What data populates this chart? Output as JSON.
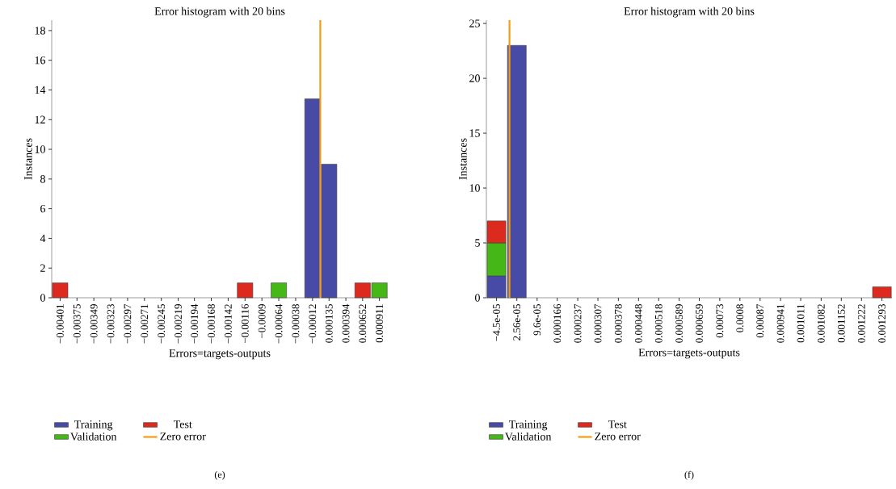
{
  "chart_data": [
    {
      "type": "bar",
      "title": "Error histogram with 20 bins",
      "xlabel": "Errors=targets-outputs",
      "ylabel": "Instances",
      "x": [
        -0.00401,
        -0.00375,
        -0.00349,
        -0.00323,
        -0.00297,
        -0.00271,
        -0.00245,
        -0.00219,
        -0.00194,
        -0.00168,
        -0.00142,
        -0.00116,
        -0.0009,
        -0.00064,
        -0.00038,
        -0.00012,
        0.000135,
        0.000394,
        0.000652,
        0.000911
      ],
      "stacked": true,
      "series": [
        {
          "name": "Training",
          "color": "#474ba5",
          "values": [
            0,
            0,
            0,
            0,
            0,
            0,
            0,
            0,
            0,
            0,
            0,
            0,
            0,
            0,
            0,
            13.4,
            9,
            0,
            0,
            0
          ]
        },
        {
          "name": "Validation",
          "color": "#45b818",
          "values": [
            0,
            0,
            0,
            0,
            0,
            0,
            0,
            0,
            0,
            0,
            0,
            0,
            0,
            1,
            0,
            0,
            0,
            0,
            0,
            1
          ]
        },
        {
          "name": "Test",
          "color": "#dc2a1e",
          "values": [
            1,
            0,
            0,
            0,
            0,
            0,
            0,
            0,
            0,
            0,
            0,
            1,
            0,
            0,
            0,
            0,
            0,
            0,
            1,
            0
          ]
        }
      ],
      "ref_lines": [
        {
          "axis": "x",
          "value": 0,
          "label": "Zero error",
          "color": "#f39c12"
        }
      ],
      "xticks": [
        {
          "value": -0.00401,
          "label": "−0.00401"
        },
        {
          "value": -0.00375,
          "label": "−0.00375"
        },
        {
          "value": -0.00349,
          "label": "−0.00349"
        },
        {
          "value": -0.00323,
          "label": "−0.00323"
        },
        {
          "value": -0.00297,
          "label": "−0.00297"
        },
        {
          "value": -0.00271,
          "label": "−0.00271"
        },
        {
          "value": -0.00245,
          "label": "−0.00245"
        },
        {
          "value": -0.00219,
          "label": "−0.00219"
        },
        {
          "value": -0.00194,
          "label": "−0.00194"
        },
        {
          "value": -0.00168,
          "label": "−0.00168"
        },
        {
          "value": -0.00142,
          "label": "−0.00142"
        },
        {
          "value": -0.00116,
          "label": "−0.00116"
        },
        {
          "value": -0.0009,
          "label": "−0.0009"
        },
        {
          "value": -0.00064,
          "label": "−0.00064"
        },
        {
          "value": -0.00038,
          "label": "−0.00038"
        },
        {
          "value": -0.00012,
          "label": "−0.00012"
        },
        {
          "value": 0.000135,
          "label": "0.000135"
        },
        {
          "value": 0.000394,
          "label": "0.000394"
        },
        {
          "value": 0.000652,
          "label": "0.000652"
        },
        {
          "value": 0.000911,
          "label": "0.000911"
        }
      ],
      "xlim": [
        -0.0041395,
        0.0010405
      ],
      "ylim": [
        0,
        18.7
      ],
      "yticks": [
        0,
        2,
        4,
        6,
        8,
        10,
        12,
        14,
        16,
        18
      ],
      "legend": "bottom",
      "annotations": [
        "(e)"
      ]
    },
    {
      "type": "bar",
      "title": "Error histogram with 20 bins",
      "xlabel": "Errors=targets-outputs",
      "ylabel": "Instances",
      "x": [
        -4.5e-05,
        2.56e-05,
        9.6e-05,
        0.000166,
        0.000237,
        0.000307,
        0.000378,
        0.000448,
        0.000518,
        0.000589,
        0.000659,
        0.00073,
        0.0008,
        0.00087,
        0.000941,
        0.001011,
        0.001082,
        0.001152,
        0.001222,
        0.001293
      ],
      "stacked": true,
      "series": [
        {
          "name": "Training",
          "color": "#474ba5",
          "values": [
            2,
            23,
            0,
            0,
            0,
            0,
            0,
            0,
            0,
            0,
            0,
            0,
            0,
            0,
            0,
            0,
            0,
            0,
            0,
            0
          ]
        },
        {
          "name": "Validation",
          "color": "#45b818",
          "values": [
            3,
            0,
            0,
            0,
            0,
            0,
            0,
            0,
            0,
            0,
            0,
            0,
            0,
            0,
            0,
            0,
            0,
            0,
            0,
            0
          ]
        },
        {
          "name": "Test",
          "color": "#dc2a1e",
          "values": [
            2,
            0,
            0,
            0,
            0,
            0,
            0,
            0,
            0,
            0,
            0,
            0,
            0,
            0,
            0,
            0,
            0,
            0,
            0,
            1
          ]
        }
      ],
      "ref_lines": [
        {
          "axis": "x",
          "value": 0,
          "label": "Zero error",
          "color": "#f39c12"
        }
      ],
      "xticks": [
        {
          "value": -4.5e-05,
          "label": "−4.5e-05"
        },
        {
          "value": 2.56e-05,
          "label": "2.56e-05"
        },
        {
          "value": 9.6e-05,
          "label": "9.6e-05"
        },
        {
          "value": 0.000166,
          "label": "0.000166"
        },
        {
          "value": 0.000237,
          "label": "0.000237"
        },
        {
          "value": 0.000307,
          "label": "0.000307"
        },
        {
          "value": 0.000378,
          "label": "0.000378"
        },
        {
          "value": 0.000448,
          "label": "0.000448"
        },
        {
          "value": 0.000518,
          "label": "0.000518"
        },
        {
          "value": 0.000589,
          "label": "0.000589"
        },
        {
          "value": 0.000659,
          "label": "0.000659"
        },
        {
          "value": 0.00073,
          "label": "0.00073"
        },
        {
          "value": 0.0008,
          "label": "0.0008"
        },
        {
          "value": 0.00087,
          "label": "0.00087"
        },
        {
          "value": 0.000941,
          "label": "0.000941"
        },
        {
          "value": 0.001011,
          "label": "0.001011"
        },
        {
          "value": 0.001082,
          "label": "0.001082"
        },
        {
          "value": 0.001152,
          "label": "0.001152"
        },
        {
          "value": 0.001222,
          "label": "0.001222"
        },
        {
          "value": 0.001293,
          "label": "0.001293"
        }
      ],
      "xlim": [
        -8.02e-05,
        0.0013278
      ],
      "ylim": [
        0,
        25.3
      ],
      "yticks": [
        0,
        5,
        10,
        15,
        20,
        25
      ],
      "legend": "bottom",
      "annotations": [
        "(f)"
      ]
    }
  ]
}
